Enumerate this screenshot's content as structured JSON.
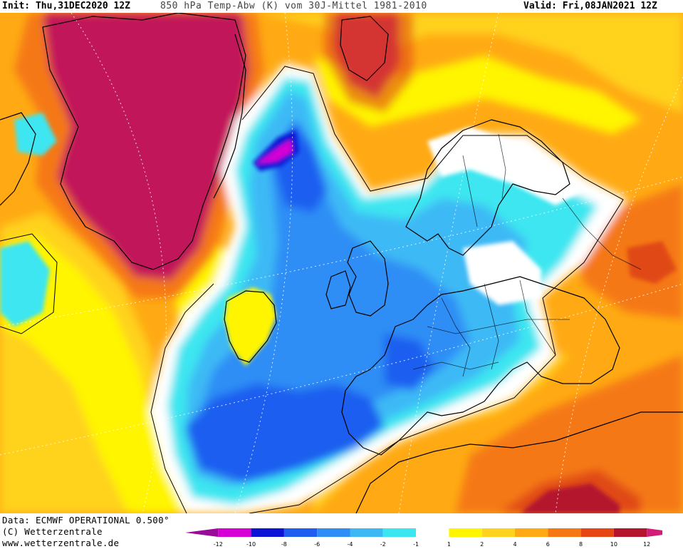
{
  "header": {
    "init": "Init: Thu,31DEC2020 12Z",
    "parameter": "850 hPa Temp-Abw (K) vom 30J-Mittel 1981-2010",
    "valid": "Valid: Fri,08JAN2021 12Z"
  },
  "footer": {
    "data_source": "Data: ECMWF OPERATIONAL 0.500°",
    "copyright": "(C) Wetterzentrale",
    "website": "www.wetterzentrale.de"
  },
  "legend": {
    "ticks": [
      "-12",
      "-10",
      "-8",
      "-6",
      "-4",
      "-2",
      "-1",
      "1",
      "2",
      "4",
      "6",
      "8",
      "10",
      "12"
    ],
    "colors": [
      "#9b0a9b",
      "#d600d6",
      "#0a14d6",
      "#1e5ff0",
      "#2f8ef5",
      "#3cb9f5",
      "#3ce6f0",
      "#ffffff",
      "#fff500",
      "#ffd21e",
      "#ffaa14",
      "#f57814",
      "#e64614",
      "#b4142d",
      "#d21e78"
    ]
  },
  "colors": {
    "strong_warm": "#c2145a",
    "warm_red": "#e04a14",
    "warm_orange": "#f57814",
    "orange": "#ffaa14",
    "amber": "#ffd21e",
    "yellow": "#fff500",
    "neutral": "#ffffff",
    "cyan": "#3ce6f0",
    "light_blue": "#3cb9f5",
    "blue": "#2f8ef5",
    "deep_blue": "#1e5ff0",
    "dark_blue": "#0a14d6",
    "magenta": "#d600d6"
  }
}
